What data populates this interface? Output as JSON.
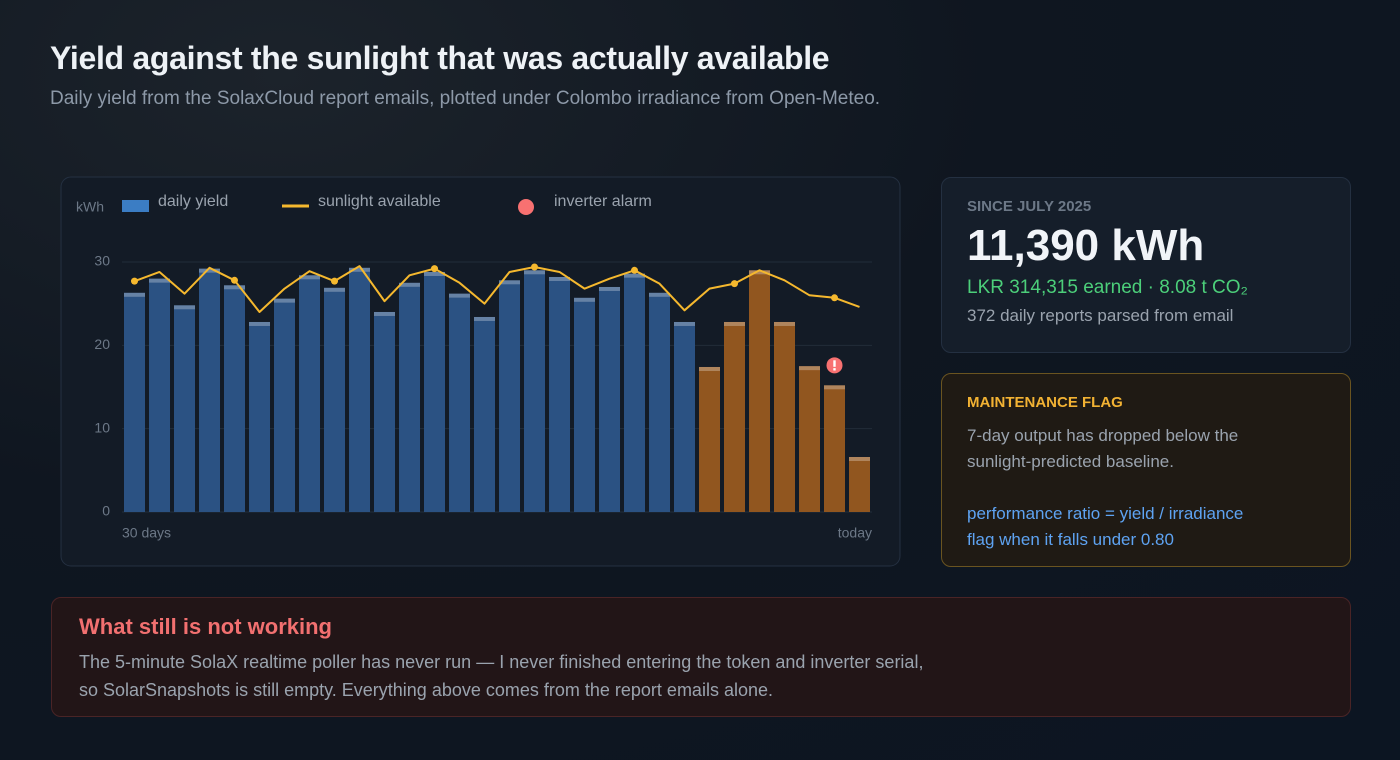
{
  "header": {
    "title": "Yield against the sunlight that was actually available",
    "subtitle": "Daily yield from the SolaxCloud report emails, plotted under Colombo irradiance from Open-Meteo."
  },
  "chart_data": {
    "type": "bar",
    "y_label": "kWh",
    "categories": [
      "30 days",
      null,
      null,
      null,
      null,
      null,
      null,
      null,
      null,
      null,
      null,
      null,
      null,
      null,
      null,
      null,
      null,
      null,
      null,
      null,
      null,
      null,
      null,
      null,
      null,
      null,
      null,
      null,
      null,
      "today"
    ],
    "series": [
      {
        "name": "daily yield",
        "type": "bar",
        "color": "#3b7dc4",
        "colors": [
          "#2b5283",
          "#2b5283",
          "#2b5283",
          "#2b5283",
          "#2b5283",
          "#2b5283",
          "#2b5283",
          "#2b5283",
          "#2b5283",
          "#2b5283",
          "#2b5283",
          "#2b5283",
          "#2b5283",
          "#2b5283",
          "#2b5283",
          "#2b5283",
          "#2b5283",
          "#2b5283",
          "#2b5283",
          "#2b5283",
          "#2b5283",
          "#2b5283",
          "#2b5283",
          "#91561f",
          "#91561f",
          "#91561f",
          "#91561f",
          "#91561f",
          "#91561f",
          "#91561f"
        ],
        "values": [
          26.3,
          28.0,
          24.8,
          29.2,
          27.2,
          22.8,
          25.6,
          28.4,
          26.9,
          29.3,
          24.0,
          27.5,
          28.8,
          26.2,
          23.4,
          27.8,
          29.0,
          28.2,
          25.7,
          27.0,
          28.6,
          26.3,
          22.8,
          17.4,
          22.8,
          29.0,
          22.8,
          17.5,
          15.2,
          6.6
        ]
      },
      {
        "name": "sunlight available",
        "type": "line",
        "color": "#f5b82e",
        "values": [
          27.7,
          28.8,
          26.2,
          29.3,
          27.8,
          24.0,
          26.8,
          28.9,
          27.7,
          29.5,
          25.3,
          28.4,
          29.2,
          27.5,
          25.0,
          28.8,
          29.4,
          28.8,
          26.8,
          28.0,
          29.0,
          27.4,
          24.2,
          26.8,
          27.4,
          29.0,
          27.8,
          26.0,
          25.7,
          24.6
        ]
      },
      {
        "name": "inverter alarm",
        "type": "marker",
        "color": "#f87171",
        "values": [
          null,
          null,
          null,
          null,
          null,
          null,
          null,
          null,
          null,
          null,
          null,
          null,
          null,
          null,
          null,
          null,
          null,
          null,
          null,
          null,
          null,
          null,
          null,
          null,
          null,
          null,
          null,
          null,
          17.6,
          null
        ]
      }
    ],
    "ylim": [
      0,
      32
    ],
    "yticks": [
      0,
      10,
      20,
      30
    ],
    "grid": true
  },
  "summary": {
    "label": "SINCE JULY 2025",
    "total": "11,390 kWh",
    "earnings": "LKR 314,315 earned  ·  8.08 t CO₂",
    "reports": "372 daily reports parsed from email"
  },
  "maintenance": {
    "title": "MAINTENANCE FLAG",
    "text": "7-day output has dropped below the sunlight-predicted baseline.",
    "formula": "performance ratio = yield / irradiance",
    "threshold": "flag when it falls under 0.80"
  },
  "issue": {
    "title": "What still is not working",
    "text": "The 5-minute SolaX realtime poller has never run — I never finished entering the token and inverter serial, so SolarSnapshots is still empty. Everything above comes from the report emails alone."
  }
}
